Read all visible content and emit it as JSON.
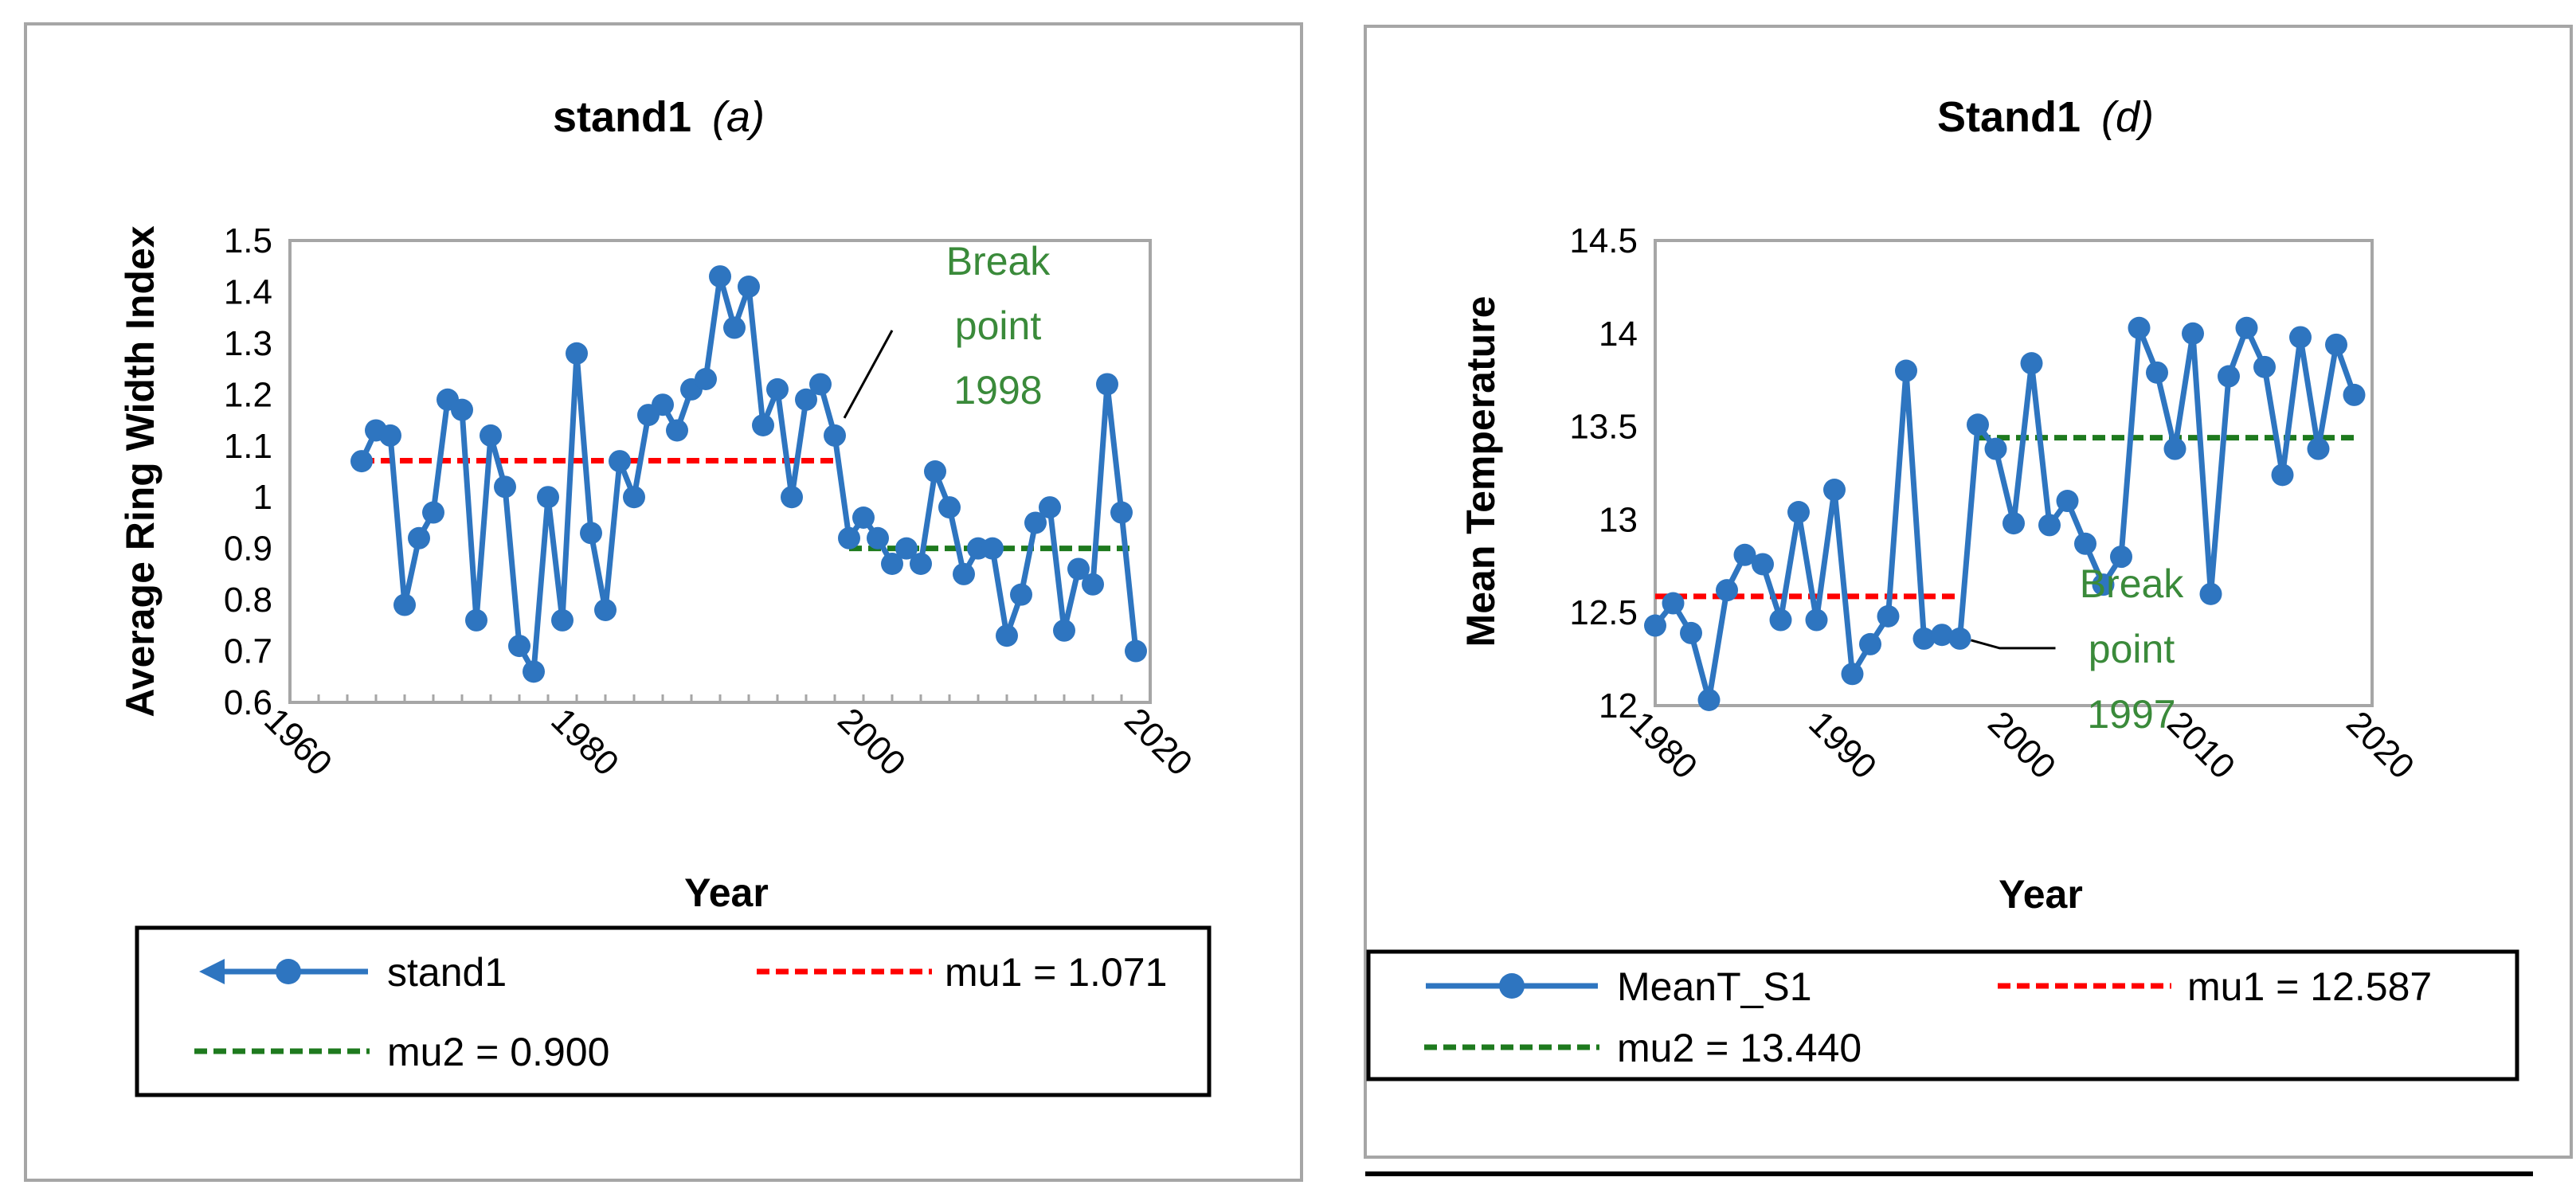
{
  "chart_data": [
    {
      "type": "line",
      "title": "stand1",
      "panel": "(a)",
      "xlabel": "Year",
      "ylabel": "Average Ring Width Index",
      "xlim": [
        1960,
        2020
      ],
      "ylim": [
        0.6,
        1.5
      ],
      "xticks": [
        "1960",
        "1980",
        "2000",
        "2020"
      ],
      "yticks": [
        "1.5",
        "1.4",
        "1.3",
        "1.2",
        "1.1",
        "1",
        "0.9",
        "0.8",
        "0.7",
        "0.6"
      ],
      "series": [
        {
          "name": "stand1",
          "color": "#2e75c0",
          "x": [
            1965,
            1966,
            1967,
            1968,
            1969,
            1970,
            1971,
            1972,
            1973,
            1974,
            1975,
            1976,
            1977,
            1978,
            1979,
            1980,
            1981,
            1982,
            1983,
            1984,
            1985,
            1986,
            1987,
            1988,
            1989,
            1990,
            1991,
            1992,
            1993,
            1994,
            1995,
            1996,
            1997,
            1998,
            1999,
            2000,
            2001,
            2002,
            2003,
            2004,
            2005,
            2006,
            2007,
            2008,
            2009,
            2010,
            2011,
            2012,
            2013,
            2014,
            2015,
            2016,
            2017,
            2018,
            2019
          ],
          "values": [
            1.07,
            1.13,
            1.12,
            0.79,
            0.92,
            0.97,
            1.19,
            1.17,
            0.76,
            1.12,
            1.02,
            0.71,
            0.66,
            1.0,
            0.76,
            1.28,
            0.93,
            0.78,
            1.07,
            1.0,
            1.16,
            1.18,
            1.13,
            1.21,
            1.23,
            1.43,
            1.33,
            1.41,
            1.14,
            1.21,
            1.0,
            1.19,
            1.22,
            1.12,
            0.92,
            0.96,
            0.92,
            0.87,
            0.9,
            0.87,
            1.05,
            0.98,
            0.85,
            0.9,
            0.9,
            0.73,
            0.81,
            0.95,
            0.98,
            0.74,
            0.86,
            0.83,
            1.22,
            0.97,
            0.7
          ]
        }
      ],
      "reference_lines": [
        {
          "name": "mu1 = 1.071",
          "value": 1.071,
          "x_range": [
            1965,
            1998
          ],
          "color": "#ff0000",
          "style": "dashed"
        },
        {
          "name": "mu2 = 0.900",
          "value": 0.9,
          "x_range": [
            1999,
            2019
          ],
          "color": "#1e7a1e",
          "style": "dashed"
        }
      ],
      "annotation": {
        "lines": [
          "Break",
          "point",
          "1998"
        ],
        "color": "#3a8a3a",
        "points_to": {
          "x": 1998,
          "y": 1.12
        }
      },
      "legend": {
        "position": "bottom",
        "entries": [
          "stand1",
          "mu1 = 1.071",
          "mu2 = 0.900"
        ]
      }
    },
    {
      "type": "line",
      "title": "Stand1",
      "panel": "(d)",
      "xlabel": "Year",
      "ylabel": "Mean Temperature",
      "xlim": [
        1980,
        2020
      ],
      "ylim": [
        12,
        14.5
      ],
      "xticks": [
        "1980",
        "1990",
        "2000",
        "2010",
        "2020"
      ],
      "yticks": [
        "14.5",
        "14",
        "13.5",
        "13",
        "12.5",
        "12"
      ],
      "series": [
        {
          "name": "MeanT_S1",
          "color": "#2e75c0",
          "x": [
            1980,
            1981,
            1982,
            1983,
            1984,
            1985,
            1986,
            1987,
            1988,
            1989,
            1990,
            1991,
            1992,
            1993,
            1994,
            1995,
            1996,
            1997,
            1998,
            1999,
            2000,
            2001,
            2002,
            2003,
            2004,
            2005,
            2006,
            2007,
            2008,
            2009,
            2010,
            2011,
            2012,
            2013,
            2014,
            2015,
            2016,
            2017,
            2018,
            2019
          ],
          "values": [
            12.43,
            12.55,
            12.39,
            12.03,
            12.62,
            12.81,
            12.76,
            12.46,
            13.04,
            12.46,
            13.16,
            12.17,
            12.33,
            12.48,
            13.8,
            12.36,
            12.38,
            12.36,
            13.51,
            13.38,
            12.98,
            13.84,
            12.97,
            13.1,
            12.87,
            12.65,
            12.8,
            14.03,
            13.79,
            13.38,
            14.0,
            12.6,
            13.77,
            14.03,
            13.82,
            13.24,
            13.98,
            13.38,
            13.94,
            13.67
          ]
        }
      ],
      "reference_lines": [
        {
          "name": "mu1 = 12.587",
          "value": 12.587,
          "x_range": [
            1980,
            1997
          ],
          "color": "#ff0000",
          "style": "dashed"
        },
        {
          "name": "mu2 = 13.440",
          "value": 13.44,
          "x_range": [
            1998,
            2019
          ],
          "color": "#1e7a1e",
          "style": "dashed"
        }
      ],
      "annotation": {
        "lines": [
          "Break",
          "point",
          "1997"
        ],
        "color": "#3a8a3a",
        "points_to": {
          "x": 1997,
          "y": 12.36
        }
      },
      "legend": {
        "position": "bottom",
        "entries": [
          "MeanT_S1",
          "mu1 = 12.587",
          "mu2 = 13.440"
        ]
      }
    }
  ]
}
